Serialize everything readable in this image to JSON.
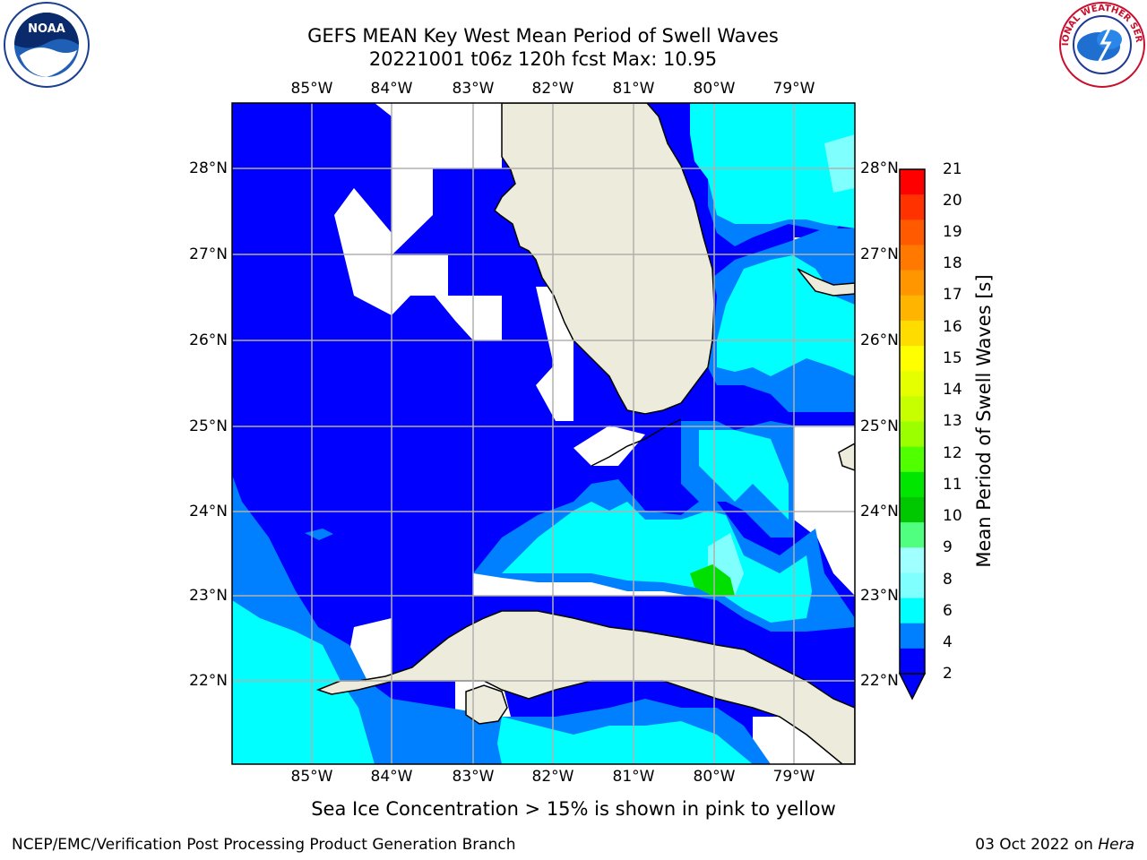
{
  "title": {
    "line1": "GEFS MEAN Key West Mean Period of Swell Waves",
    "line2": "20221001 t06z 120h fcst   Max: 10.95"
  },
  "map": {
    "lon_ticks": [
      "85°W",
      "84°W",
      "83°W",
      "82°W",
      "81°W",
      "80°W",
      "79°W"
    ],
    "lat_ticks": [
      "28°N",
      "27°N",
      "26°N",
      "25°N",
      "24°N",
      "23°N",
      "22°N"
    ],
    "land_color": "#ecebdc",
    "ocean_fill_levels": {
      "2-4": "#0000ff",
      "4-6": "#0080ff",
      "6-8": "#00ffff",
      "8-9": "#80ffff",
      "10-11": "#00e000"
    }
  },
  "colorbar": {
    "label": "Mean Period of Swell Waves [s]",
    "ticks": [
      "21",
      "20",
      "19",
      "18",
      "17",
      "16",
      "15",
      "14",
      "13",
      "12",
      "11",
      "10",
      "9",
      "8",
      "6",
      "4",
      "2"
    ],
    "colors": [
      "#ff0000",
      "#ff3200",
      "#ff5a00",
      "#ff7800",
      "#ff9600",
      "#ffb400",
      "#ffdc00",
      "#ffff00",
      "#e6ff00",
      "#c8ff00",
      "#9bff00",
      "#50ff00",
      "#00e600",
      "#00c800",
      "#50ff80",
      "#a0ffff",
      "#80ffff",
      "#00ffff",
      "#0080ff",
      "#0000ff"
    ]
  },
  "note": "Sea Ice Concentration > 15% is shown in pink to yellow",
  "footer": {
    "left": "NCEP/EMC/Verification Post Processing Product Generation Branch",
    "date": "03 Oct 2022 on ",
    "host": "Hera"
  },
  "logos": {
    "noaa_text": "NOAA",
    "nws_text": "NATIONAL WEATHER SERVICE"
  }
}
